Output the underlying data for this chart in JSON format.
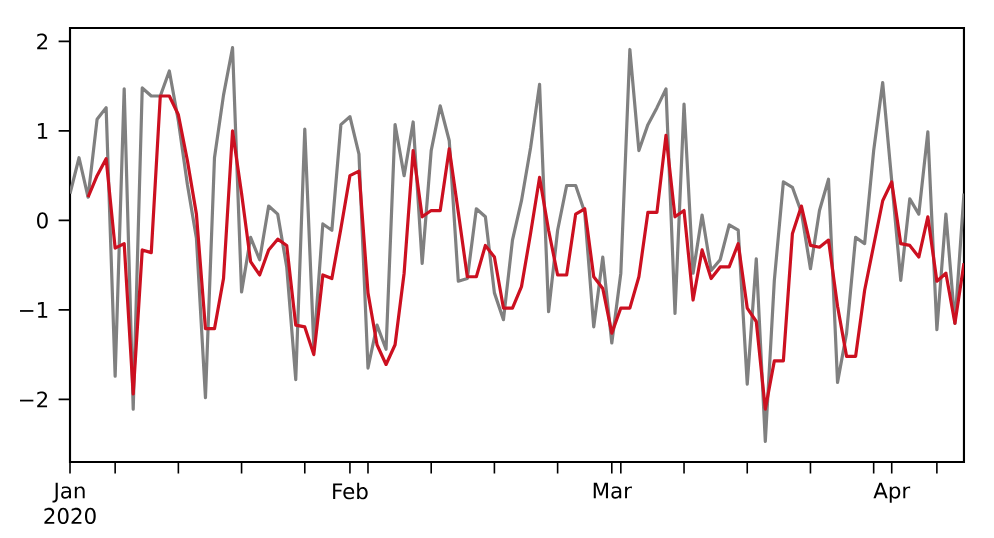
{
  "chart_data": {
    "type": "line",
    "x": [
      "2020-01-01",
      "2020-01-02",
      "2020-01-03",
      "2020-01-04",
      "2020-01-05",
      "2020-01-06",
      "2020-01-07",
      "2020-01-08",
      "2020-01-09",
      "2020-01-10",
      "2020-01-11",
      "2020-01-12",
      "2020-01-13",
      "2020-01-14",
      "2020-01-15",
      "2020-01-16",
      "2020-01-17",
      "2020-01-18",
      "2020-01-19",
      "2020-01-20",
      "2020-01-21",
      "2020-01-22",
      "2020-01-23",
      "2020-01-24",
      "2020-01-25",
      "2020-01-26",
      "2020-01-27",
      "2020-01-28",
      "2020-01-29",
      "2020-01-30",
      "2020-01-31",
      "2020-02-01",
      "2020-02-02",
      "2020-02-03",
      "2020-02-04",
      "2020-02-05",
      "2020-02-06",
      "2020-02-07",
      "2020-02-08",
      "2020-02-09",
      "2020-02-10",
      "2020-02-11",
      "2020-02-12",
      "2020-02-13",
      "2020-02-14",
      "2020-02-15",
      "2020-02-16",
      "2020-02-17",
      "2020-02-18",
      "2020-02-19",
      "2020-02-20",
      "2020-02-21",
      "2020-02-22",
      "2020-02-23",
      "2020-02-24",
      "2020-02-25",
      "2020-02-26",
      "2020-02-27",
      "2020-02-28",
      "2020-02-29",
      "2020-03-01",
      "2020-03-02",
      "2020-03-03",
      "2020-03-04",
      "2020-03-05",
      "2020-03-06",
      "2020-03-07",
      "2020-03-08",
      "2020-03-09",
      "2020-03-10",
      "2020-03-11",
      "2020-03-12",
      "2020-03-13",
      "2020-03-14",
      "2020-03-15",
      "2020-03-16",
      "2020-03-17",
      "2020-03-18",
      "2020-03-19",
      "2020-03-20",
      "2020-03-21",
      "2020-03-22",
      "2020-03-23",
      "2020-03-24",
      "2020-03-25",
      "2020-03-26",
      "2020-03-27",
      "2020-03-28",
      "2020-03-29",
      "2020-03-30",
      "2020-03-31",
      "2020-04-01",
      "2020-04-02",
      "2020-04-03",
      "2020-04-04",
      "2020-04-05",
      "2020-04-06",
      "2020-04-07",
      "2020-04-08",
      "2020-04-09"
    ],
    "series": [
      {
        "color": "#808080",
        "values": [
          0.3,
          0.7,
          0.26,
          1.13,
          1.26,
          -1.74,
          1.47,
          -2.11,
          1.48,
          1.39,
          1.39,
          1.67,
          1.11,
          0.4,
          -0.2,
          -1.98,
          0.7,
          1.4,
          1.93,
          -0.8,
          -0.19,
          -0.44,
          0.16,
          0.07,
          -0.52,
          -1.78,
          1.02,
          -1.41,
          -0.04,
          -0.11,
          1.07,
          1.16,
          0.74,
          -1.65,
          -1.17,
          -1.44,
          1.07,
          0.5,
          1.1,
          -0.48,
          0.78,
          1.28,
          0.89,
          -0.68,
          -0.65,
          0.13,
          0.04,
          -0.81,
          -1.11,
          -0.22,
          0.22,
          0.81,
          1.52,
          -1.02,
          -0.11,
          0.39,
          0.39,
          0.09,
          -1.19,
          -0.41,
          -1.37,
          -0.59,
          1.91,
          0.78,
          1.07,
          1.26,
          1.47,
          -1.04,
          1.3,
          -0.59,
          0.06,
          -0.56,
          -0.44,
          -0.05,
          -0.11,
          -1.83,
          -0.43,
          -2.47,
          -0.67,
          0.43,
          0.37,
          0.09,
          -0.54,
          0.11,
          0.46,
          -1.81,
          -1.26,
          -0.19,
          -0.26,
          0.78,
          1.54,
          0.44,
          -0.67,
          0.24,
          0.07,
          0.99,
          -1.22,
          0.07,
          -1.15,
          0.3
        ]
      },
      {
        "color": "#cc1020",
        "values": [
          null,
          null,
          0.26,
          0.5,
          0.69,
          -0.31,
          -0.26,
          -1.94,
          -0.33,
          -0.36,
          1.39,
          1.39,
          1.18,
          0.67,
          0.07,
          -1.21,
          -1.21,
          -0.65,
          1.0,
          0.3,
          -0.46,
          -0.61,
          -0.33,
          -0.21,
          -0.28,
          -1.17,
          -1.19,
          -1.5,
          -0.61,
          -0.65,
          -0.09,
          0.5,
          0.55,
          -0.81,
          -1.39,
          -1.61,
          -1.39,
          -0.59,
          0.78,
          0.04,
          0.11,
          0.11,
          0.8,
          0.09,
          -0.63,
          -0.63,
          -0.28,
          -0.41,
          -0.98,
          -0.98,
          -0.74,
          -0.15,
          0.48,
          -0.11,
          -0.61,
          -0.61,
          0.07,
          0.13,
          -0.63,
          -0.76,
          -1.26,
          -0.98,
          -0.98,
          -0.63,
          0.09,
          0.09,
          0.95,
          0.04,
          0.11,
          -0.89,
          -0.33,
          -0.65,
          -0.52,
          -0.52,
          -0.26,
          -0.98,
          -1.13,
          -2.11,
          -1.57,
          -1.57,
          -0.15,
          0.16,
          -0.28,
          -0.3,
          -0.22,
          -0.96,
          -1.52,
          -1.52,
          -0.78,
          -0.28,
          0.22,
          0.43,
          -0.26,
          -0.28,
          -0.41,
          0.04,
          -0.68,
          -0.59,
          -1.15,
          -0.48
        ]
      }
    ],
    "xlim": [
      "2020-01-01",
      "2020-04-09"
    ],
    "xticks": [
      {
        "value": "2020-01-01",
        "label": "Jan 2020"
      },
      {
        "value": "2020-01-06",
        "label": null
      },
      {
        "value": "2020-01-13",
        "label": null
      },
      {
        "value": "2020-01-20",
        "label": null
      },
      {
        "value": "2020-01-27",
        "label": null
      },
      {
        "value": "2020-02-01",
        "label": "Feb"
      },
      {
        "value": "2020-02-03",
        "label": null
      },
      {
        "value": "2020-02-10",
        "label": null
      },
      {
        "value": "2020-02-17",
        "label": null
      },
      {
        "value": "2020-02-24",
        "label": null
      },
      {
        "value": "2020-03-01",
        "label": "Mar"
      },
      {
        "value": "2020-03-02",
        "label": null
      },
      {
        "value": "2020-03-09",
        "label": null
      },
      {
        "value": "2020-03-16",
        "label": null
      },
      {
        "value": "2020-03-23",
        "label": null
      },
      {
        "value": "2020-03-30",
        "label": null
      },
      {
        "value": "2020-04-01",
        "label": "Apr"
      },
      {
        "value": "2020-04-06",
        "label": null
      }
    ],
    "ylim": [
      -2.7,
      2.15
    ],
    "yticks": [
      {
        "value": -2,
        "label": "−2"
      },
      {
        "value": -1,
        "label": "−1"
      },
      {
        "value": 0,
        "label": "0"
      },
      {
        "value": 1,
        "label": "1"
      },
      {
        "value": 2,
        "label": "2"
      }
    ]
  }
}
